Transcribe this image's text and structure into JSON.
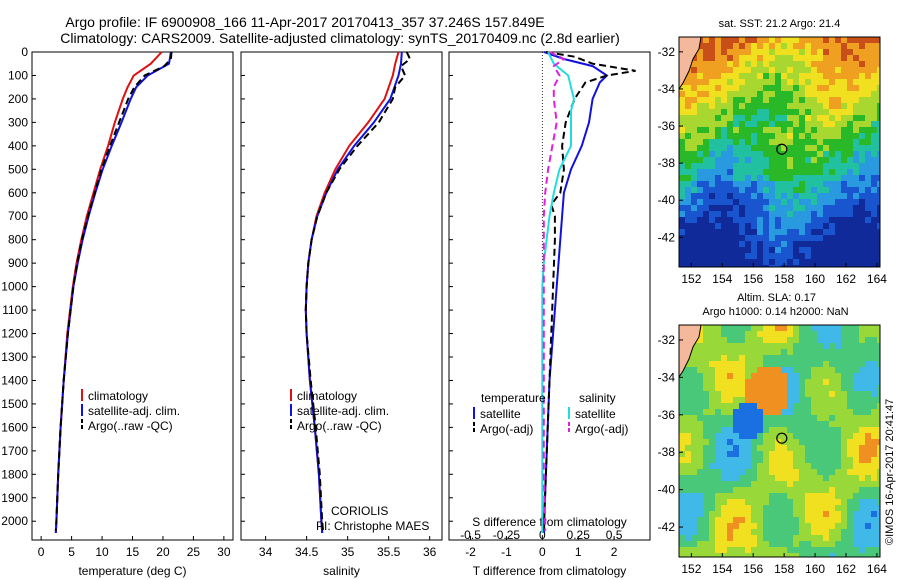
{
  "header": {
    "line1": "Argo profile: IF 6900908_166 11-Apr-2017 20170413_357 37.246S 157.849E",
    "line2": "Climatology: CARS2009. Satellite-adjusted climatology: synTS_20170409.nc (2.8d earlier)"
  },
  "colors": {
    "climatology": "#dd1111",
    "satellite": "#1111dd",
    "argo": "#000000",
    "sat_s": "#22dddd",
    "argo_s": "#dd22dd",
    "coast": "#f4b89a",
    "marker_ring": "#000000"
  },
  "chart_data": [
    {
      "type": "line",
      "panel": "temperature",
      "xlabel": "temperature (deg C)",
      "xlim": [
        -1.5,
        31.5
      ],
      "xticks": [
        0,
        5,
        10,
        15,
        20,
        25,
        30
      ],
      "ylim": [
        0,
        2080
      ],
      "yticks": [
        0,
        100,
        200,
        300,
        400,
        500,
        600,
        700,
        800,
        900,
        1000,
        1100,
        1200,
        1300,
        1400,
        1500,
        1600,
        1700,
        1800,
        1900,
        2000
      ],
      "legend": [
        "climatology",
        "satellite-adj. clim.",
        "Argo(..raw -QC)"
      ],
      "series": [
        {
          "name": "climatology",
          "style": "solid",
          "depth": [
            0,
            50,
            100,
            150,
            200,
            300,
            400,
            500,
            600,
            700,
            800,
            900,
            1000,
            1200,
            1400,
            1600,
            1800,
            2000,
            2050
          ],
          "values": [
            19.8,
            18.0,
            15.2,
            14.2,
            13.4,
            12.1,
            11.0,
            9.7,
            8.6,
            7.5,
            6.6,
            5.8,
            5.2,
            4.3,
            3.7,
            3.2,
            2.8,
            2.5,
            2.4
          ]
        },
        {
          "name": "satellite-adj. clim.",
          "style": "solid",
          "depth": [
            0,
            50,
            100,
            150,
            200,
            300,
            400,
            500,
            600,
            700,
            800,
            900,
            1000,
            1200,
            1400,
            1600,
            1800,
            2000,
            2050
          ],
          "values": [
            21.3,
            21.0,
            17.5,
            15.6,
            14.7,
            13.2,
            11.6,
            10.1,
            8.9,
            7.8,
            6.8,
            6.0,
            5.3,
            4.4,
            3.7,
            3.2,
            2.8,
            2.5,
            2.4
          ]
        },
        {
          "name": "Argo(..raw -QC)",
          "style": "dashed",
          "depth": [
            0,
            30,
            60,
            100,
            150,
            200,
            300,
            400,
            500,
            600,
            700,
            800,
            900,
            1000,
            1200,
            1400,
            1600,
            1800,
            2000,
            2040
          ],
          "values": [
            21.4,
            21.3,
            20.2,
            17.0,
            15.3,
            14.3,
            12.8,
            11.3,
            9.9,
            8.8,
            7.7,
            6.7,
            5.9,
            5.3,
            4.4,
            3.7,
            3.2,
            2.8,
            2.5,
            2.4
          ]
        }
      ]
    },
    {
      "type": "line",
      "panel": "salinity",
      "xlabel": "salinity",
      "xlim": [
        33.7,
        36.15
      ],
      "xticks": [
        34,
        34.5,
        35,
        35.5,
        36
      ],
      "ylim": [
        0,
        2080
      ],
      "legend": [
        "climatology",
        "satellite-adj. clim.",
        "Argo(..raw -QC)"
      ],
      "annotation": [
        "CORIOLIS",
        "PI: Christophe MAES"
      ],
      "series": [
        {
          "name": "climatology",
          "style": "solid",
          "depth": [
            0,
            50,
            100,
            200,
            300,
            400,
            500,
            600,
            700,
            800,
            900,
            1000,
            1100,
            1200,
            1400,
            1600,
            1800,
            2000,
            2050
          ],
          "values": [
            35.62,
            35.58,
            35.55,
            35.45,
            35.25,
            35.02,
            34.85,
            34.72,
            34.62,
            34.56,
            34.52,
            34.5,
            34.49,
            34.5,
            34.54,
            34.6,
            34.65,
            34.68,
            34.69
          ]
        },
        {
          "name": "satellite-adj. clim.",
          "style": "solid",
          "depth": [
            0,
            50,
            100,
            200,
            300,
            400,
            500,
            600,
            700,
            800,
            900,
            1000,
            1100,
            1200,
            1400,
            1600,
            1800,
            2000,
            2050
          ],
          "values": [
            35.66,
            35.65,
            35.62,
            35.52,
            35.32,
            35.08,
            34.88,
            34.74,
            34.63,
            34.56,
            34.52,
            34.5,
            34.49,
            34.5,
            34.54,
            34.6,
            34.65,
            34.68,
            34.69
          ]
        },
        {
          "name": "Argo(..raw -QC)",
          "style": "dashed",
          "depth": [
            0,
            30,
            60,
            100,
            150,
            200,
            300,
            400,
            500,
            600,
            700,
            800,
            900,
            1000,
            1100,
            1200,
            1400,
            1600,
            1800,
            2000,
            2040
          ],
          "values": [
            35.72,
            35.76,
            35.65,
            35.7,
            35.58,
            35.55,
            35.38,
            35.12,
            34.9,
            34.74,
            34.63,
            34.56,
            34.52,
            34.5,
            34.49,
            34.5,
            34.55,
            34.61,
            34.66,
            34.69,
            34.7
          ]
        }
      ]
    },
    {
      "type": "line",
      "panel": "differences",
      "xlabel": "T difference from climatology",
      "xlabel_top": "S difference from climatology",
      "xlim": [
        -2.6,
        3.0
      ],
      "xticks": [
        -2,
        -1,
        0,
        1,
        2
      ],
      "xticks_top": [
        -0.5,
        -0.25,
        0,
        0.25,
        0.5
      ],
      "ylim": [
        0,
        2080
      ],
      "legend_left_title": "temperature",
      "legend_right_title": "salinity",
      "legend": [
        "satellite",
        "Argo(-adj)",
        "satellite",
        "Argo(-adj)"
      ],
      "series": [
        {
          "name": "satellite",
          "group": "temperature",
          "style": "solid",
          "depth": [
            0,
            30,
            60,
            100,
            130,
            200,
            300,
            400,
            500,
            600,
            700,
            800,
            900,
            1000,
            1200,
            1400,
            1600,
            1800,
            2000,
            2050
          ],
          "values": [
            0.05,
            0.6,
            1.4,
            1.8,
            1.6,
            1.4,
            1.3,
            1.1,
            0.8,
            0.6,
            0.55,
            0.5,
            0.45,
            0.4,
            0.3,
            0.2,
            0.15,
            0.1,
            0.05,
            0.05
          ]
        },
        {
          "name": "Argo(-adj)",
          "group": "temperature",
          "style": "dashed",
          "depth": [
            0,
            20,
            50,
            80,
            100,
            130,
            200,
            300,
            400,
            500,
            600,
            650,
            700,
            800,
            1000,
            1200,
            1400,
            1600,
            1800,
            2000,
            2050
          ],
          "values": [
            0.1,
            0.9,
            1.4,
            2.6,
            1.8,
            1.2,
            0.9,
            0.65,
            0.55,
            0.6,
            0.5,
            0.25,
            0.35,
            0.35,
            0.3,
            0.25,
            0.2,
            0.15,
            0.1,
            0.05,
            0.05
          ]
        },
        {
          "name": "satellite",
          "group": "salinity",
          "style": "solid",
          "depth": [
            0,
            50,
            100,
            150,
            200,
            250,
            300,
            400,
            500,
            600,
            700,
            800,
            900,
            1000,
            1100,
            1200,
            1400,
            1600,
            1800,
            2000,
            2050
          ],
          "values": [
            0.04,
            0.08,
            0.18,
            0.2,
            0.22,
            0.2,
            0.2,
            0.2,
            0.12,
            0.08,
            0.05,
            0.03,
            0.01,
            0,
            0,
            0,
            0,
            0,
            0,
            0,
            0
          ]
        },
        {
          "name": "Argo(-adj)",
          "group": "salinity",
          "style": "dashed",
          "depth": [
            0,
            30,
            60,
            100,
            150,
            200,
            300,
            400,
            500,
            600,
            700,
            800,
            900,
            1000,
            1200,
            1400,
            1600,
            1800,
            2000,
            2040
          ],
          "values": [
            0.05,
            0.15,
            0.08,
            0.12,
            0.08,
            0.08,
            0.1,
            0.07,
            0.04,
            0.02,
            0.01,
            0.01,
            0.01,
            0.01,
            0.01,
            0.01,
            0.01,
            0.01,
            0.02,
            0.02
          ]
        }
      ]
    },
    {
      "type": "heatmap",
      "panel": "sst-map",
      "title": "sat. SST: 21.2 Argo: 21.4",
      "xticks": [
        152,
        154,
        156,
        158,
        160,
        162,
        164
      ],
      "yticks": [
        -32,
        -34,
        -36,
        -38,
        -40,
        -42
      ],
      "xlim": [
        151.2,
        164.2
      ],
      "ylim": [
        -43.6,
        -31.2
      ],
      "marker": {
        "lon": 157.85,
        "lat": -37.25
      }
    },
    {
      "type": "heatmap",
      "panel": "sla-map",
      "title": "Altim. SLA: 0.17",
      "subtitle": "Argo h1000: 0.14 h2000: NaN",
      "xticks": [
        152,
        154,
        156,
        158,
        160,
        162,
        164
      ],
      "yticks": [
        -32,
        -34,
        -36,
        -38,
        -40,
        -42
      ],
      "xlim": [
        151.2,
        164.2
      ],
      "ylim": [
        -43.6,
        -31.2
      ],
      "marker": {
        "lon": 157.85,
        "lat": -37.25
      }
    }
  ],
  "footer": {
    "credit": "©IMOS 16-Apr-2017 20:41:47"
  }
}
